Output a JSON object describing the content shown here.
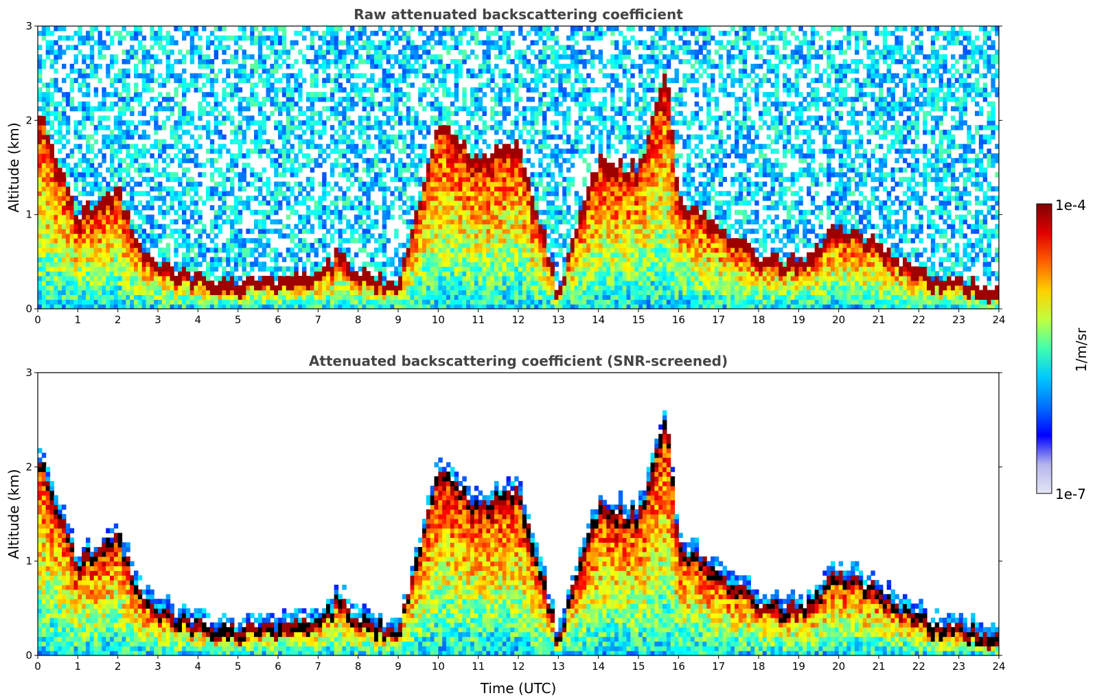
{
  "chart_data": [
    {
      "type": "heatmap",
      "title": "Raw attenuated backscattering coefficient",
      "xlabel": "",
      "ylabel": "Altitude (km)",
      "xlim": [
        0,
        24
      ],
      "ylim": [
        0,
        3
      ],
      "xticks": [
        "0",
        "1",
        "2",
        "3",
        "4",
        "5",
        "6",
        "7",
        "8",
        "9",
        "10",
        "11",
        "12",
        "13",
        "14",
        "15",
        "16",
        "17",
        "18",
        "19",
        "20",
        "21",
        "22",
        "23",
        "24"
      ],
      "yticks": [
        "0",
        "1",
        "2",
        "3"
      ],
      "colormap": "jet",
      "color_scale": "log",
      "boundary_layer_top_km": {
        "x": [
          0,
          1,
          2,
          2.5,
          3,
          4,
          5,
          6,
          7,
          7.5,
          8,
          9,
          10,
          11,
          12,
          13,
          14,
          15,
          15.7,
          16,
          17,
          18,
          19,
          20,
          21,
          22,
          23,
          23.8
        ],
        "y": [
          2.2,
          1.0,
          1.3,
          0.7,
          0.5,
          0.35,
          0.3,
          0.3,
          0.35,
          0.6,
          0.4,
          0.25,
          2.0,
          1.6,
          1.8,
          0.2,
          1.6,
          1.5,
          2.5,
          1.2,
          0.9,
          0.6,
          0.5,
          0.9,
          0.7,
          0.4,
          0.3,
          0.25
        ]
      }
    },
    {
      "type": "heatmap",
      "title": "Attenuated backscattering coefficient (SNR-screened)",
      "xlabel": "Time (UTC)",
      "ylabel": "Altitude (km)",
      "xlim": [
        0,
        24
      ],
      "ylim": [
        0,
        3
      ],
      "xticks": [
        "0",
        "1",
        "2",
        "3",
        "4",
        "5",
        "6",
        "7",
        "8",
        "9",
        "10",
        "11",
        "12",
        "13",
        "14",
        "15",
        "16",
        "17",
        "18",
        "19",
        "20",
        "21",
        "22",
        "23",
        "24"
      ],
      "yticks": [
        "0",
        "1",
        "2",
        "3"
      ],
      "colormap": "jet",
      "color_scale": "log",
      "screened": true
    }
  ],
  "colorbar": {
    "label": "1/m/sr",
    "max_label": "1e-4",
    "min_label": "1e-7",
    "colors": [
      "#e6e6f5",
      "#b4b4ee",
      "#0000ff",
      "#0070ff",
      "#00c8ff",
      "#40ffb0",
      "#c0ff40",
      "#ffd000",
      "#ff6000",
      "#e00000",
      "#800000"
    ]
  }
}
